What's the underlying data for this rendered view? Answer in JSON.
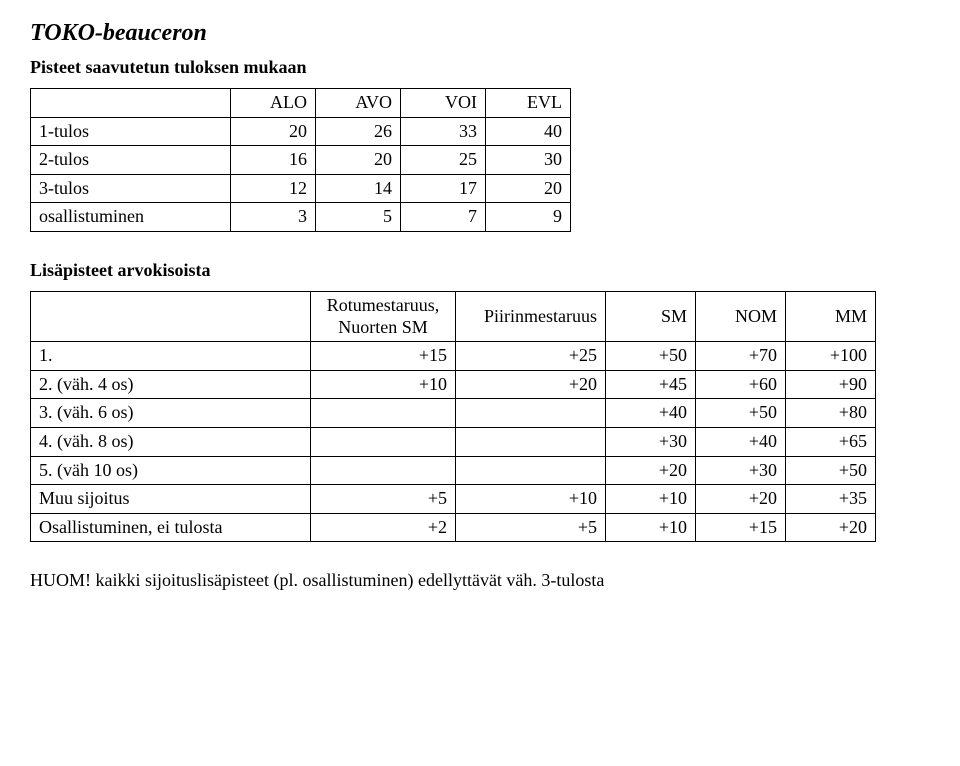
{
  "title": "TOKO-beauceron",
  "section1": {
    "heading": "Pisteet saavutetun tuloksen mukaan",
    "columns": [
      "ALO",
      "AVO",
      "VOI",
      "EVL"
    ],
    "rows": [
      {
        "label": "1-tulos",
        "values": [
          "20",
          "26",
          "33",
          "40"
        ]
      },
      {
        "label": "2-tulos",
        "values": [
          "16",
          "20",
          "25",
          "30"
        ]
      },
      {
        "label": "3-tulos",
        "values": [
          "12",
          "14",
          "17",
          "20"
        ]
      },
      {
        "label": "osallistuminen",
        "values": [
          "3",
          "5",
          "7",
          "9"
        ]
      }
    ]
  },
  "section2": {
    "heading": "Lisäpisteet arvokisoista",
    "columns": [
      "Rotumestaruus,\nNuorten SM",
      "Piirinmestaruus",
      "SM",
      "NOM",
      "MM"
    ],
    "rows": [
      {
        "label": "1.",
        "values": [
          "+15",
          "+25",
          "+50",
          "+70",
          "+100"
        ]
      },
      {
        "label": "2. (väh. 4 os)",
        "values": [
          "+10",
          "+20",
          "+45",
          "+60",
          "+90"
        ]
      },
      {
        "label": "3. (väh. 6 os)",
        "values": [
          "",
          "",
          "+40",
          "+50",
          "+80"
        ]
      },
      {
        "label": "4. (väh. 8 os)",
        "values": [
          "",
          "",
          "+30",
          "+40",
          "+65"
        ]
      },
      {
        "label": "5. (väh 10 os)",
        "values": [
          "",
          "",
          "+20",
          "+30",
          "+50"
        ]
      },
      {
        "label": "Muu sijoitus",
        "values": [
          "+5",
          "+10",
          "+10",
          "+20",
          "+35"
        ]
      },
      {
        "label": "Osallistuminen, ei tulosta",
        "values": [
          "+2",
          "+5",
          "+10",
          "+15",
          "+20"
        ]
      }
    ]
  },
  "note": "HUOM! kaikki sijoituslisäpisteet (pl. osallistuminen) edellyttävät väh. 3-tulosta"
}
